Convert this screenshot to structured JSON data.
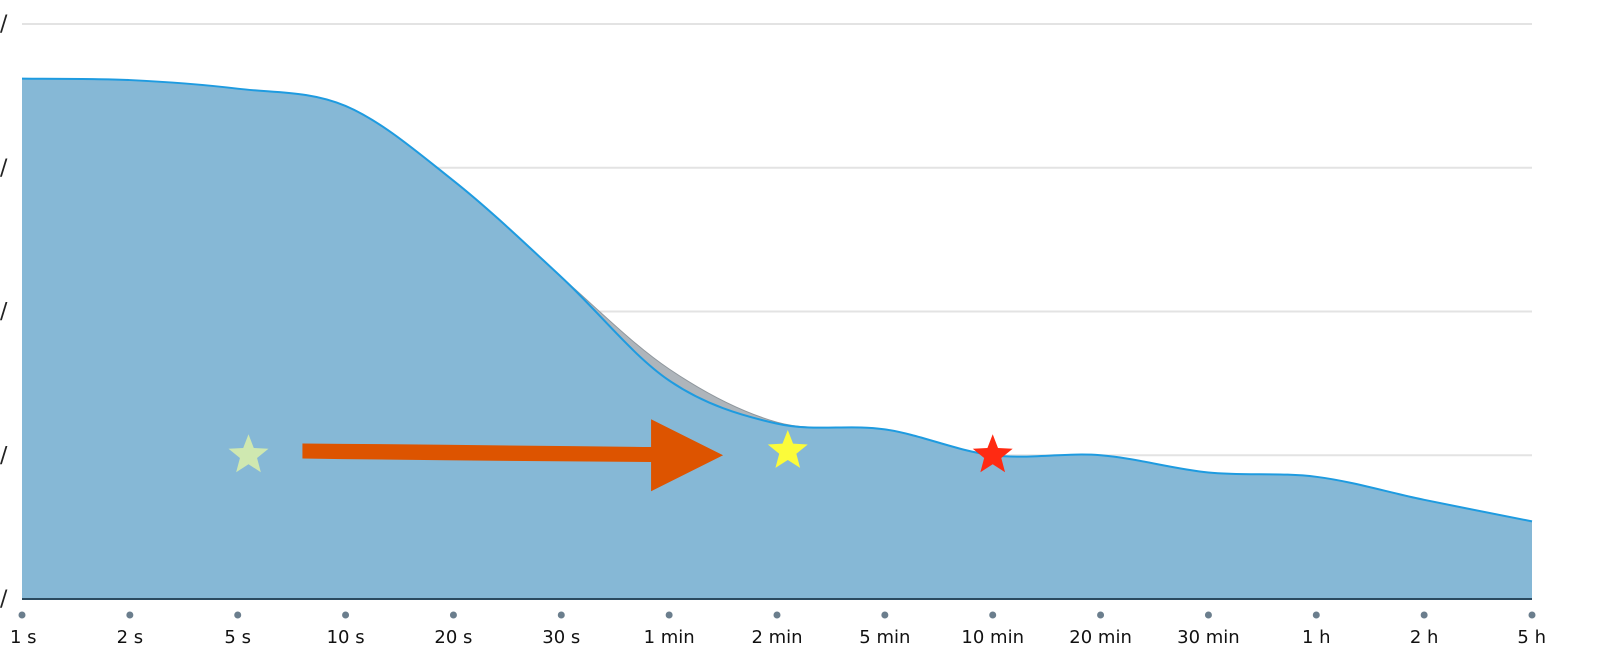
{
  "chart_data": {
    "type": "area",
    "title": "",
    "xlabel": "",
    "ylabel": "",
    "categories": [
      "1 s",
      "2 s",
      "5 s",
      "10 s",
      "20 s",
      "30 s",
      "1 min",
      "2 min",
      "5 min",
      "10 min",
      "20 min",
      "30 min",
      "1 h",
      "2 h",
      "5 h"
    ],
    "y_tick_labels": [
      "/",
      "/",
      "/",
      "/",
      "/"
    ],
    "ylim": [
      0,
      4
    ],
    "grid": true,
    "legend": "none",
    "series": [
      {
        "values": [
          3.62,
          3.61,
          3.55,
          3.43,
          2.91,
          2.24,
          1.52,
          1.22,
          1.18,
          1.0,
          1.0,
          0.88,
          0.85,
          0.69,
          0.54
        ],
        "color": "#86b8d6",
        "line_color": "#1e9be0"
      },
      {
        "values": [
          3.62,
          3.61,
          3.55,
          3.43,
          2.91,
          2.24,
          1.6,
          1.23,
          1.18,
          1.0,
          1.0,
          0.88,
          0.85,
          0.69,
          0.54
        ],
        "color": "#aeb5bb"
      }
    ],
    "annotations": [
      {
        "type": "star",
        "x": 2.1,
        "y": 1.0,
        "color": "#cfe8b0"
      },
      {
        "type": "arrow",
        "x_start": 2.6,
        "y_start": 1.03,
        "x_end": 6.5,
        "y_end": 1.0,
        "color": "#dd5400"
      },
      {
        "type": "star",
        "x": 7.1,
        "y": 1.03,
        "color": "#fbfb3a"
      },
      {
        "type": "star",
        "x": 9.0,
        "y": 1.0,
        "color": "#ff2a12"
      }
    ],
    "grid_color": "#e3e3e3",
    "axis_color": "#2b4a60",
    "tick_color": "#6b7e8d"
  }
}
